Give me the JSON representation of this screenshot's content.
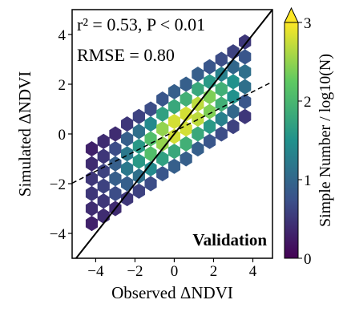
{
  "chart_data": {
    "type": "hexbin",
    "xlabel": "Observed ΔNDVI",
    "ylabel": "Simulated ΔNDVI",
    "annotations": [
      "r² = 0.53, P < 0.01",
      "RMSE = 0.80",
      "Validation"
    ],
    "xlim": [
      -5.2,
      5
    ],
    "ylim": [
      -5,
      5
    ],
    "xticks": [
      {
        "value": -4,
        "label": "−4"
      },
      {
        "value": -2,
        "label": "−2"
      },
      0,
      2,
      4
    ],
    "yticks": [
      {
        "value": -4,
        "label": "−4"
      },
      {
        "value": -2,
        "label": "−2"
      },
      0,
      2,
      4
    ],
    "x": [
      -4.2,
      -4.2,
      -4.2,
      -4.2,
      -4.2,
      -4.2,
      -3.6,
      -3.6,
      -3.6,
      -3.6,
      -3.6,
      -3.6,
      -3.0,
      -3.0,
      -3.0,
      -3.0,
      -3.0,
      -3.0,
      -2.4,
      -2.4,
      -2.4,
      -2.4,
      -2.4,
      -2.4,
      -1.8,
      -1.8,
      -1.8,
      -1.8,
      -1.8,
      -1.8,
      -1.2,
      -1.2,
      -1.2,
      -1.2,
      -1.2,
      -1.2,
      -0.6,
      -0.6,
      -0.6,
      -0.6,
      -0.6,
      -0.6,
      0,
      0,
      0,
      0,
      0,
      0,
      0.6,
      0.6,
      0.6,
      0.6,
      0.6,
      0.6,
      1.2,
      1.2,
      1.2,
      1.2,
      1.2,
      1.2,
      1.8,
      1.8,
      1.8,
      1.8,
      1.8,
      1.8,
      2.4,
      2.4,
      2.4,
      2.4,
      2.4,
      2.4,
      3.0,
      3.0,
      3.0,
      3.0,
      3.0,
      3.0,
      3.6,
      3.6,
      3.6,
      3.6,
      3.6,
      3.6
    ],
    "y": [
      -3.6,
      -3.0,
      -2.4,
      -1.8,
      -1.2,
      -0.6,
      -3.3,
      -2.7,
      -2.1,
      -1.5,
      -0.9,
      -0.3,
      -3.0,
      -2.4,
      -1.8,
      -1.2,
      -0.6,
      0.0,
      -2.6,
      -2.0,
      -1.4,
      -0.8,
      -0.2,
      0.4,
      -2.3,
      -1.7,
      -1.1,
      -0.5,
      0.1,
      0.7,
      -2.0,
      -1.4,
      -0.8,
      -0.2,
      0.4,
      1.0,
      -1.6,
      -1.0,
      -0.4,
      0.2,
      0.8,
      1.4,
      -1.3,
      -0.7,
      -0.1,
      0.5,
      1.1,
      1.7,
      -1.0,
      -0.4,
      0.2,
      0.8,
      1.4,
      2.0,
      -0.6,
      0.0,
      0.6,
      1.2,
      1.8,
      2.4,
      -0.3,
      0.3,
      0.9,
      1.5,
      2.1,
      2.7,
      0.0,
      0.6,
      1.2,
      1.8,
      2.4,
      3.0,
      0.3,
      0.9,
      1.5,
      2.1,
      2.7,
      3.3,
      0.7,
      1.3,
      1.9,
      2.5,
      3.1,
      3.7
    ],
    "values": [
      0.3,
      0.4,
      0.5,
      0.5,
      0.4,
      0.3,
      0.4,
      0.5,
      0.6,
      0.6,
      0.5,
      0.4,
      0.4,
      0.7,
      0.9,
      0.9,
      0.7,
      0.4,
      0.5,
      0.9,
      1.2,
      1.2,
      0.9,
      0.5,
      0.6,
      1.1,
      1.6,
      1.6,
      1.1,
      0.6,
      0.7,
      1.4,
      2.1,
      2.1,
      1.4,
      0.7,
      0.8,
      1.7,
      2.5,
      2.5,
      1.7,
      0.8,
      0.9,
      1.8,
      2.8,
      2.8,
      1.8,
      0.9,
      0.9,
      1.9,
      2.8,
      2.8,
      1.9,
      0.9,
      0.9,
      1.8,
      2.7,
      2.7,
      1.8,
      0.9,
      0.8,
      1.6,
      2.4,
      2.4,
      1.6,
      0.8,
      0.7,
      1.3,
      1.9,
      1.9,
      1.3,
      0.7,
      0.6,
      1.0,
      1.5,
      1.5,
      1.0,
      0.6,
      0.5,
      0.8,
      1.1,
      1.1,
      0.8,
      0.5
    ],
    "colormap": "viridis",
    "colorbar": {
      "label": "Simple Number / log10(N)",
      "lim": [
        0,
        3
      ],
      "ticks": [
        0,
        1,
        2,
        3
      ]
    },
    "lines": [
      {
        "slope": 1,
        "intercept": 0,
        "style": "solid"
      },
      {
        "slope": 0.4,
        "intercept": 0.1,
        "style": "dashed"
      }
    ]
  }
}
